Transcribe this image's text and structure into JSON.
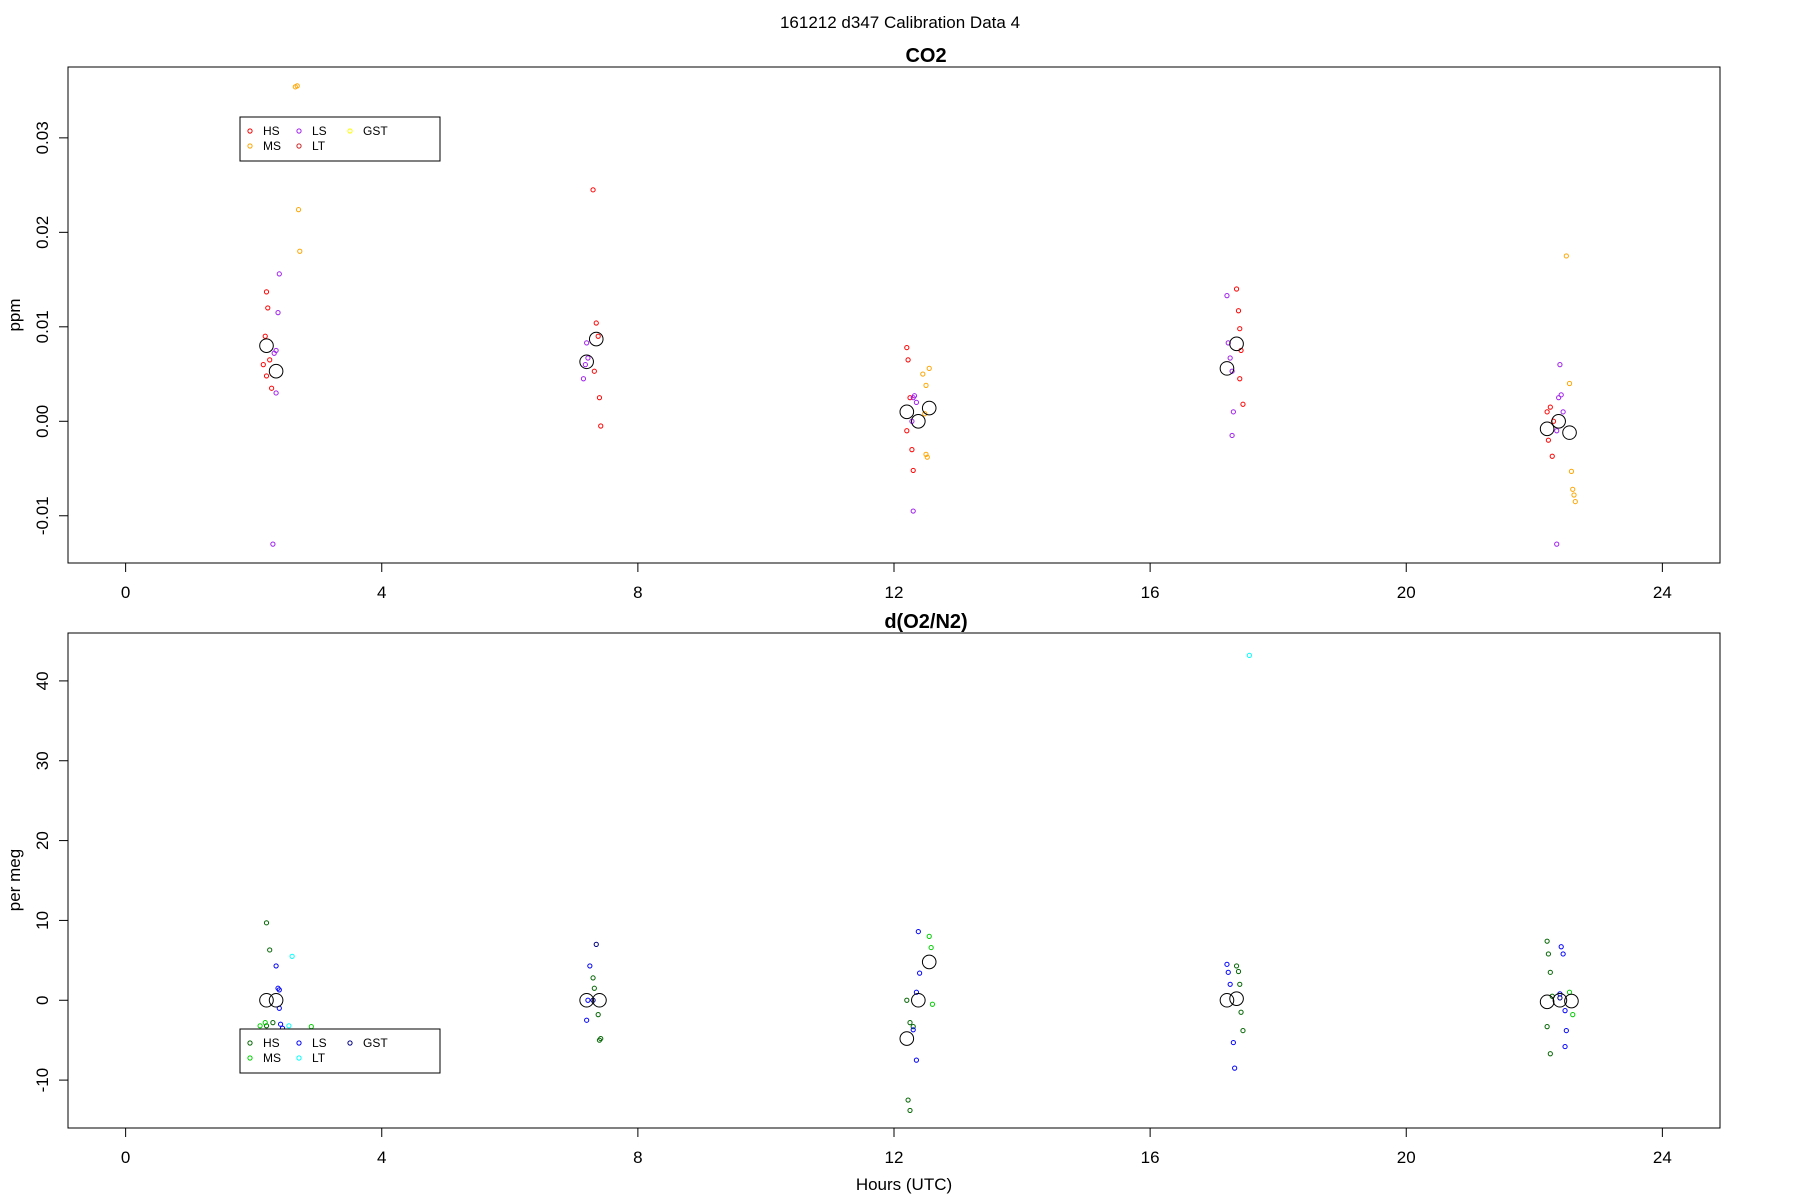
{
  "suptitle": "161212   d347   Calibration Data 4",
  "chart_data": [
    {
      "type": "scatter",
      "title": "CO2",
      "xlabel": "",
      "ylabel": "ppm",
      "xlim": [
        -0.9,
        24.9
      ],
      "ylim": [
        -0.015,
        0.0375
      ],
      "xticks": [
        0,
        4,
        8,
        12,
        16,
        20,
        24
      ],
      "yticks": [
        -0.01,
        0.0,
        0.01,
        0.02,
        0.03
      ],
      "ytick_labels": [
        "-0.01",
        "0.00",
        "0.01",
        "0.02",
        "0.03"
      ],
      "legend": {
        "position": "top-left",
        "entries": [
          {
            "label": "HS",
            "color": "#ff0000"
          },
          {
            "label": "MS",
            "color": "#ffa500"
          },
          {
            "label": "LS",
            "color": "#a020f0"
          },
          {
            "label": "LT",
            "color": "#cd2626"
          },
          {
            "label": "GST",
            "color": "#ffff00"
          }
        ]
      },
      "series": [
        {
          "name": "HS",
          "color": "#ff0000",
          "points": [
            [
              2.2,
              0.0137
            ],
            [
              2.22,
              0.012
            ],
            [
              2.18,
              0.009
            ],
            [
              2.25,
              0.0065
            ],
            [
              2.15,
              0.006
            ],
            [
              2.2,
              0.0048
            ],
            [
              2.28,
              0.0035
            ],
            [
              7.3,
              0.0245
            ],
            [
              7.35,
              0.0104
            ],
            [
              7.38,
              0.009
            ],
            [
              7.32,
              0.0053
            ],
            [
              7.4,
              0.0025
            ],
            [
              7.42,
              -0.0005
            ],
            [
              12.2,
              0.0078
            ],
            [
              12.22,
              0.0065
            ],
            [
              12.25,
              0.0025
            ],
            [
              12.2,
              -0.001
            ],
            [
              12.28,
              -0.003
            ],
            [
              12.3,
              -0.0052
            ],
            [
              17.35,
              0.014
            ],
            [
              17.38,
              0.0117
            ],
            [
              17.4,
              0.0098
            ],
            [
              17.42,
              0.0075
            ],
            [
              17.4,
              0.0045
            ],
            [
              17.45,
              0.0018
            ],
            [
              22.2,
              0.001
            ],
            [
              22.25,
              0.0015
            ],
            [
              22.3,
              0.0
            ],
            [
              22.22,
              -0.002
            ],
            [
              22.28,
              -0.0037
            ]
          ]
        },
        {
          "name": "MS",
          "color": "#ffa500",
          "points": [
            [
              2.65,
              0.0354
            ],
            [
              2.68,
              0.0355
            ],
            [
              2.7,
              0.0224
            ],
            [
              2.72,
              0.018
            ],
            [
              12.45,
              0.005
            ],
            [
              12.5,
              0.0038
            ],
            [
              12.55,
              0.0056
            ],
            [
              12.48,
              0.0008
            ],
            [
              12.5,
              -0.0035
            ],
            [
              12.52,
              -0.0038
            ],
            [
              22.5,
              0.0175
            ],
            [
              22.55,
              0.004
            ],
            [
              22.58,
              -0.0053
            ],
            [
              22.6,
              -0.0072
            ],
            [
              22.62,
              -0.0078
            ],
            [
              22.64,
              -0.0085
            ]
          ]
        },
        {
          "name": "LS",
          "color": "#a020f0",
          "points": [
            [
              2.4,
              0.0156
            ],
            [
              2.38,
              0.0115
            ],
            [
              2.35,
              0.0075
            ],
            [
              2.32,
              0.0072
            ],
            [
              2.35,
              0.003
            ],
            [
              2.3,
              -0.013
            ],
            [
              7.2,
              0.0083
            ],
            [
              7.18,
              0.006
            ],
            [
              7.22,
              0.0067
            ],
            [
              7.15,
              0.0045
            ],
            [
              12.3,
              0.0025
            ],
            [
              12.35,
              0.002
            ],
            [
              12.32,
              0.0027
            ],
            [
              12.28,
              0.0
            ],
            [
              12.3,
              -0.0095
            ],
            [
              17.2,
              0.0133
            ],
            [
              17.22,
              0.0083
            ],
            [
              17.25,
              0.0067
            ],
            [
              17.28,
              0.0053
            ],
            [
              17.3,
              0.001
            ],
            [
              17.28,
              -0.0015
            ],
            [
              22.4,
              0.006
            ],
            [
              22.42,
              0.0028
            ],
            [
              22.38,
              0.0025
            ],
            [
              22.45,
              0.001
            ],
            [
              22.35,
              -0.001
            ],
            [
              22.35,
              -0.013
            ]
          ]
        },
        {
          "name": "LT",
          "color": "#cd2626",
          "points": []
        },
        {
          "name": "GST",
          "color": "#ffff00",
          "points": []
        }
      ],
      "means": [
        [
          2.2,
          0.008
        ],
        [
          2.35,
          0.0053
        ],
        [
          7.2,
          0.0063
        ],
        [
          7.35,
          0.0087
        ],
        [
          12.2,
          0.001
        ],
        [
          12.38,
          0.0
        ],
        [
          12.55,
          0.0014
        ],
        [
          17.2,
          0.0056
        ],
        [
          17.35,
          0.0082
        ],
        [
          22.2,
          -0.0008
        ],
        [
          22.38,
          0.0
        ],
        [
          22.55,
          -0.0012
        ]
      ]
    },
    {
      "type": "scatter",
      "title": "d(O2/N2)",
      "xlabel": "Hours (UTC)",
      "ylabel": "per meg",
      "xlim": [
        -0.9,
        24.9
      ],
      "ylim": [
        -16,
        46
      ],
      "xticks": [
        0,
        4,
        8,
        12,
        16,
        20,
        24
      ],
      "yticks": [
        -10,
        0,
        10,
        20,
        30,
        40
      ],
      "ytick_labels": [
        "-10",
        "0",
        "10",
        "20",
        "30",
        "40"
      ],
      "legend": {
        "position": "bottom-left",
        "entries": [
          {
            "label": "HS",
            "color": "#006400"
          },
          {
            "label": "MS",
            "color": "#00cd00"
          },
          {
            "label": "LS",
            "color": "#0000ff"
          },
          {
            "label": "LT",
            "color": "#00ffff"
          },
          {
            "label": "GST",
            "color": "#000080"
          }
        ]
      },
      "series": [
        {
          "name": "HS",
          "color": "#006400",
          "points": [
            [
              2.2,
              9.7
            ],
            [
              2.25,
              6.3
            ],
            [
              2.3,
              -2.8
            ],
            [
              2.2,
              -3.2
            ],
            [
              7.3,
              2.8
            ],
            [
              7.32,
              1.5
            ],
            [
              7.38,
              -1.8
            ],
            [
              7.42,
              -4.8
            ],
            [
              7.4,
              -5.0
            ],
            [
              12.2,
              0.0
            ],
            [
              12.25,
              -2.8
            ],
            [
              12.3,
              -3.3
            ],
            [
              12.22,
              -12.5
            ],
            [
              12.25,
              -13.8
            ],
            [
              17.35,
              4.3
            ],
            [
              17.38,
              3.6
            ],
            [
              17.4,
              2.0
            ],
            [
              17.42,
              -1.5
            ],
            [
              17.45,
              -3.8
            ],
            [
              22.2,
              7.4
            ],
            [
              22.22,
              5.8
            ],
            [
              22.25,
              3.5
            ],
            [
              22.28,
              0.5
            ],
            [
              22.2,
              -3.3
            ],
            [
              22.25,
              -6.7
            ]
          ]
        },
        {
          "name": "MS",
          "color": "#00cd00",
          "points": [
            [
              2.1,
              -3.2
            ],
            [
              2.18,
              -2.8
            ],
            [
              2.9,
              -3.3
            ],
            [
              12.55,
              8.0
            ],
            [
              12.58,
              6.6
            ],
            [
              12.6,
              -0.5
            ],
            [
              22.55,
              1.0
            ],
            [
              22.6,
              -1.8
            ]
          ]
        },
        {
          "name": "LS",
          "color": "#0000ff",
          "points": [
            [
              2.35,
              4.3
            ],
            [
              2.38,
              1.5
            ],
            [
              2.4,
              1.3
            ],
            [
              2.4,
              -1.0
            ],
            [
              2.42,
              -3.0
            ],
            [
              2.45,
              -3.5
            ],
            [
              7.25,
              4.3
            ],
            [
              7.22,
              0.0
            ],
            [
              7.2,
              -2.5
            ],
            [
              12.38,
              8.6
            ],
            [
              12.4,
              3.4
            ],
            [
              12.35,
              1.0
            ],
            [
              12.3,
              -3.7
            ],
            [
              12.35,
              -7.5
            ],
            [
              17.2,
              4.5
            ],
            [
              17.22,
              3.5
            ],
            [
              17.25,
              2.0
            ],
            [
              17.3,
              -5.3
            ],
            [
              17.32,
              -8.5
            ],
            [
              22.42,
              6.7
            ],
            [
              22.45,
              5.8
            ],
            [
              22.4,
              0.8
            ],
            [
              22.48,
              -1.3
            ],
            [
              22.5,
              -3.8
            ],
            [
              22.48,
              -5.8
            ]
          ]
        },
        {
          "name": "LT",
          "color": "#00ffff",
          "points": [
            [
              2.6,
              5.5
            ],
            [
              2.55,
              -3.2
            ],
            [
              17.55,
              43.2
            ]
          ]
        },
        {
          "name": "GST",
          "color": "#000080",
          "points": [
            [
              7.35,
              7.0
            ],
            [
              7.3,
              0.0
            ],
            [
              22.4,
              0.3
            ]
          ]
        }
      ],
      "means": [
        [
          2.2,
          0.0
        ],
        [
          2.35,
          0.0
        ],
        [
          7.2,
          0.0
        ],
        [
          7.4,
          0.0
        ],
        [
          12.2,
          -4.8
        ],
        [
          12.38,
          0.0
        ],
        [
          12.55,
          4.8
        ],
        [
          17.2,
          0.0
        ],
        [
          17.35,
          0.2
        ],
        [
          22.2,
          -0.2
        ],
        [
          22.4,
          0.0
        ],
        [
          22.58,
          -0.1
        ]
      ]
    }
  ]
}
